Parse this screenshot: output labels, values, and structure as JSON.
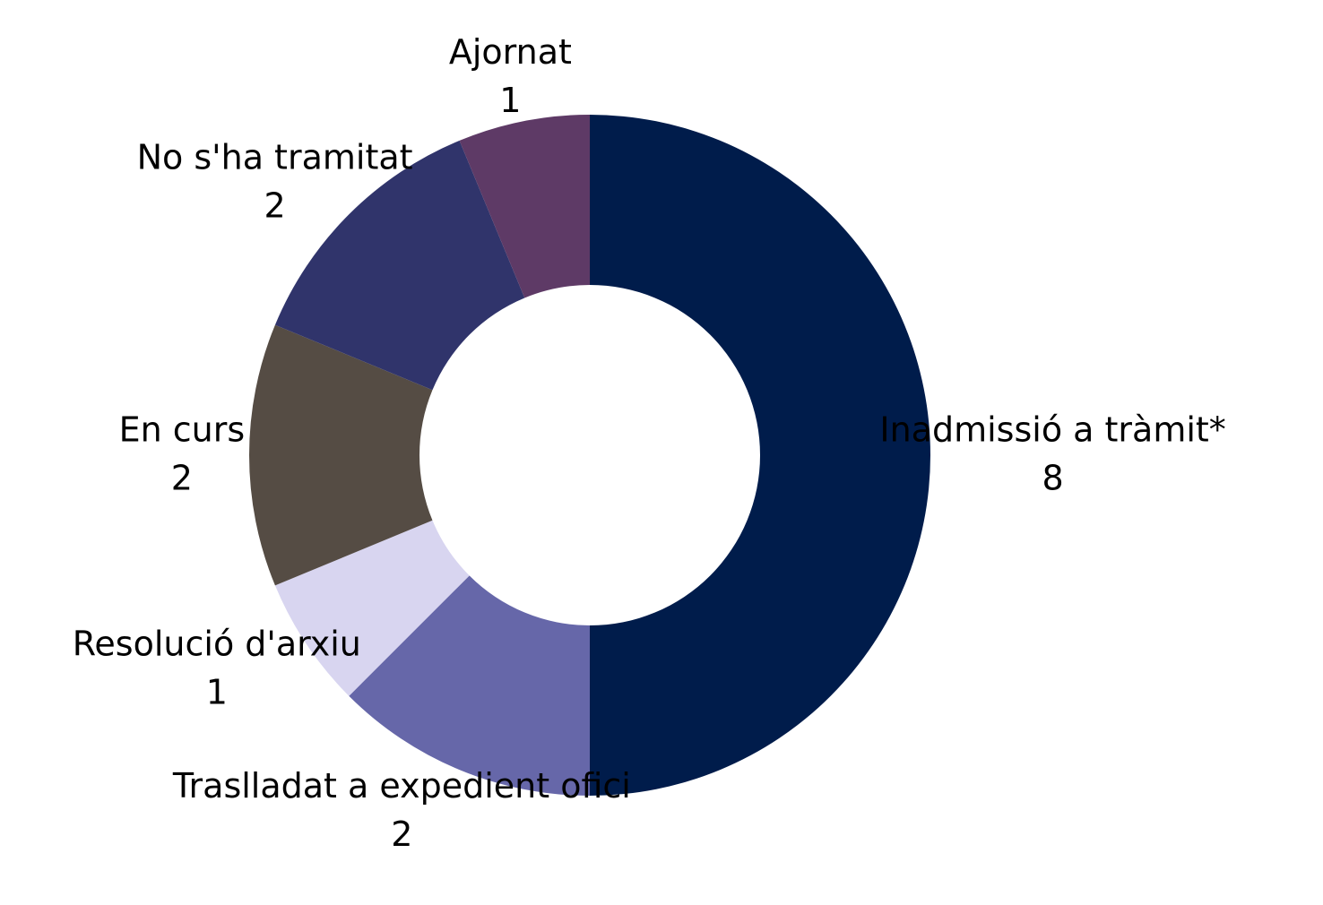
{
  "chart_data": {
    "type": "donut",
    "categories": [
      "Inadmissió a tràmit*",
      "Traslladat a expedient ofici",
      "Resolució d'arxiu",
      "En curs",
      "No s'ha tramitat",
      "Ajornat"
    ],
    "values": [
      8,
      2,
      1,
      2,
      2,
      1
    ],
    "colors": [
      "#001c4b",
      "#6667a9",
      "#d8d5f0",
      "#554c44",
      "#30346b",
      "#5e3a66"
    ]
  }
}
